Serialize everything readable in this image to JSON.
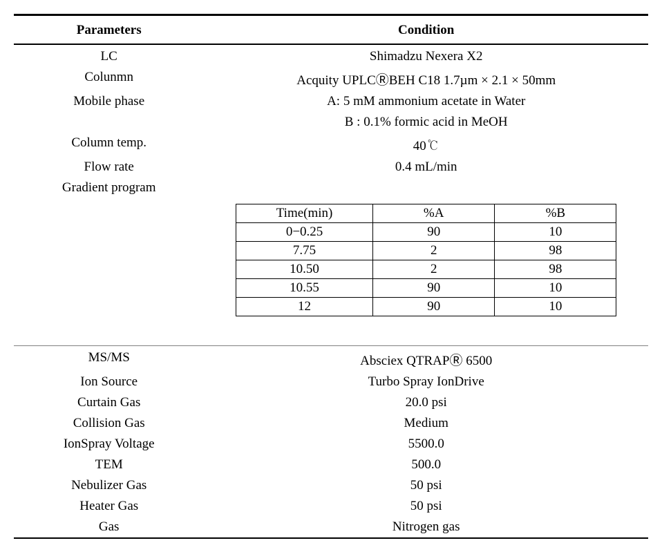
{
  "headers": {
    "parameters": "Parameters",
    "condition": "Condition"
  },
  "top_section": {
    "rows": [
      {
        "param": "LC",
        "cond": "Shimadzu Nexera X2"
      },
      {
        "param": "Colunmn",
        "cond": "Acquity UPLCⓇBEH C18 1.7µm × 2.1 × 50mm"
      },
      {
        "param": "Mobile phase",
        "cond": "A: 5 mM ammonium acetate in Water"
      },
      {
        "param": "",
        "cond": "B : 0.1% formic acid in MeOH"
      },
      {
        "param": "Column temp.",
        "cond": "40℃"
      },
      {
        "param": "Flow rate",
        "cond": "0.4 mL/min"
      },
      {
        "param": "Gradient program",
        "cond": ""
      }
    ]
  },
  "gradient_table": {
    "headers": [
      "Time(min)",
      "%A",
      "%B"
    ],
    "rows": [
      [
        "0−0.25",
        "90",
        "10"
      ],
      [
        "7.75",
        "2",
        "98"
      ],
      [
        "10.50",
        "2",
        "98"
      ],
      [
        "10.55",
        "90",
        "10"
      ],
      [
        "12",
        "90",
        "10"
      ]
    ],
    "col_widths": [
      "36%",
      "32%",
      "32%"
    ]
  },
  "bottom_section": {
    "rows": [
      {
        "param": "MS/MS",
        "cond": "Absciex QTRAPⓇ 6500"
      },
      {
        "param": "Ion Source",
        "cond": "Turbo Spray IonDrive"
      },
      {
        "param": "Curtain Gas",
        "cond": "20.0 psi"
      },
      {
        "param": "Collision Gas",
        "cond": "Medium"
      },
      {
        "param": "IonSpray Voltage",
        "cond": "5500.0"
      },
      {
        "param": "TEM",
        "cond": "500.0"
      },
      {
        "param": "Nebulizer Gas",
        "cond": "50 psi"
      },
      {
        "param": "Heater Gas",
        "cond": "50 psi"
      },
      {
        "param": "Gas",
        "cond": "Nitrogen gas"
      }
    ]
  },
  "style": {
    "background": "#ffffff",
    "text_color": "#000000",
    "thin_border_color": "#808080",
    "font_size_pt": 15
  }
}
